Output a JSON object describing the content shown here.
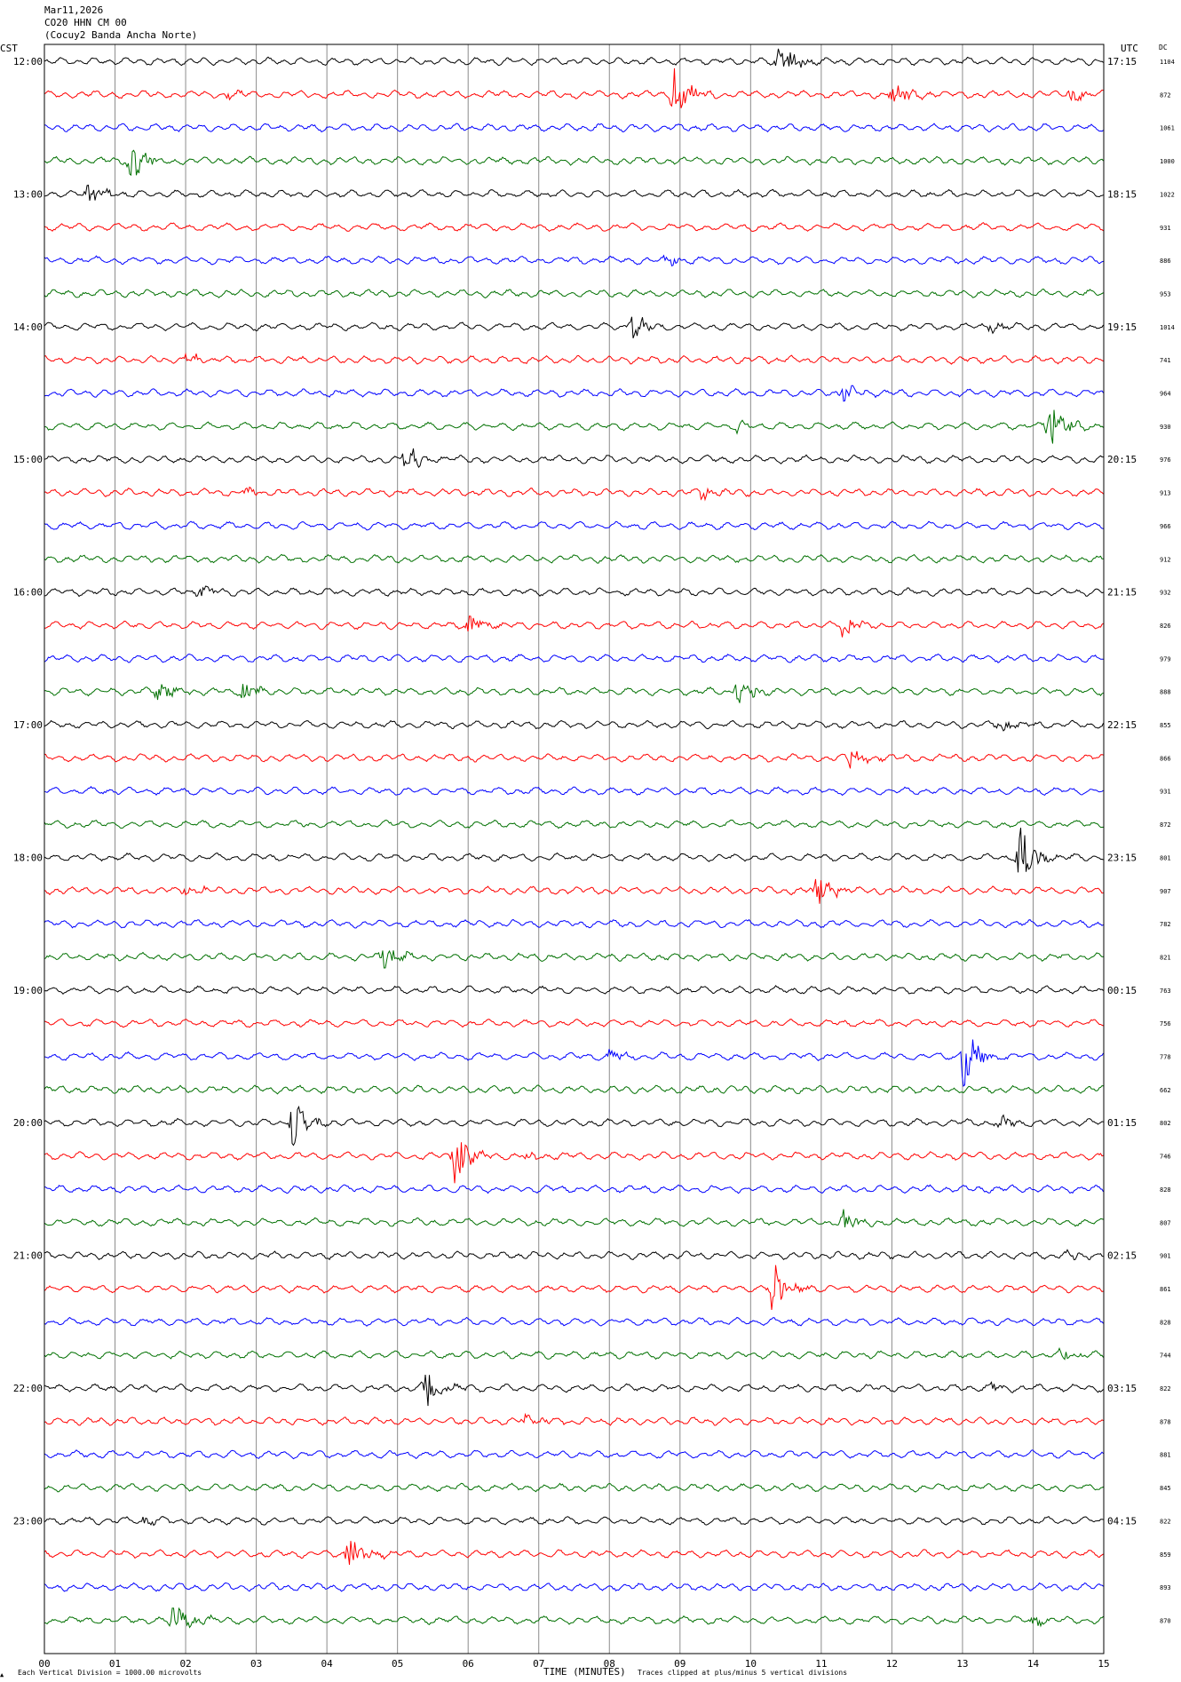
{
  "header": {
    "date": "Mar11,2026",
    "station": "CO20 HHN CM 00",
    "site": "(Cocuy2 Banda Ancha Norte)",
    "left_zone": "CST",
    "right_zone": "UTC",
    "dc_label": "DC"
  },
  "footer": {
    "division_note": "Each Vertical Division = 1000.00 microvolts",
    "x_axis_title": "TIME (MINUTES)",
    "clip_note": "Traces clipped at plus/minus 5 vertical divisions"
  },
  "colors": {
    "trace_cycle": [
      "#000000",
      "#ff0000",
      "#0000ff",
      "#007000"
    ],
    "grid": "#8c8c8c",
    "frame": "#000000",
    "text": "#000000"
  },
  "chart_data": {
    "type": "line",
    "title": "CO20 HHN CM 00 (Cocuy2 Banda Ancha Norte)",
    "xlabel": "TIME (MINUTES)",
    "xlim": [
      0,
      15
    ],
    "x_ticks": [
      "00",
      "01",
      "02",
      "03",
      "04",
      "05",
      "06",
      "07",
      "08",
      "09",
      "10",
      "11",
      "12",
      "13",
      "14",
      "15"
    ],
    "grid": true,
    "row_minutes": 15,
    "left_time_labels": [
      "12:00",
      "13:00",
      "14:00",
      "15:00",
      "16:00",
      "17:00",
      "18:00",
      "19:00",
      "20:00",
      "21:00",
      "22:00",
      "23:00"
    ],
    "right_time_labels": [
      "17:15",
      "18:15",
      "19:15",
      "20:15",
      "21:15",
      "22:15",
      "23:15",
      "00:15",
      "01:15",
      "02:15",
      "03:15",
      "04:15"
    ],
    "dc_offsets": [
      1104,
      872,
      1061,
      1000,
      1022,
      931,
      886,
      953,
      1014,
      741,
      964,
      930,
      976,
      913,
      966,
      912,
      932,
      826,
      979,
      888,
      855,
      866,
      931,
      872,
      801,
      907,
      782,
      821,
      763,
      756,
      778,
      662,
      802,
      746,
      828,
      807,
      901,
      861,
      828,
      744,
      822,
      878,
      881,
      845,
      822,
      859,
      893,
      870
    ],
    "events": [
      {
        "row": 0,
        "minute": 10.4,
        "amp": 3.5
      },
      {
        "row": 1,
        "minute": 8.9,
        "amp": 5.0
      },
      {
        "row": 1,
        "minute": 12.0,
        "amp": 2.4
      },
      {
        "row": 1,
        "minute": 14.5,
        "amp": 1.2
      },
      {
        "row": 1,
        "minute": 2.6,
        "amp": 0.8
      },
      {
        "row": 3,
        "minute": 1.2,
        "amp": 3.5
      },
      {
        "row": 4,
        "minute": 0.6,
        "amp": 2.0
      },
      {
        "row": 6,
        "minute": 8.8,
        "amp": 1.0
      },
      {
        "row": 8,
        "minute": 8.3,
        "amp": 2.6
      },
      {
        "row": 8,
        "minute": 13.4,
        "amp": 1.0
      },
      {
        "row": 9,
        "minute": 2.0,
        "amp": 1.0
      },
      {
        "row": 10,
        "minute": 11.3,
        "amp": 1.3
      },
      {
        "row": 11,
        "minute": 14.2,
        "amp": 5.0
      },
      {
        "row": 11,
        "minute": 9.8,
        "amp": 1.0
      },
      {
        "row": 12,
        "minute": 5.1,
        "amp": 3.0
      },
      {
        "row": 13,
        "minute": 9.3,
        "amp": 1.2
      },
      {
        "row": 13,
        "minute": 2.8,
        "amp": 0.9
      },
      {
        "row": 16,
        "minute": 2.2,
        "amp": 1.2
      },
      {
        "row": 17,
        "minute": 6.0,
        "amp": 1.6
      },
      {
        "row": 17,
        "minute": 11.3,
        "amp": 2.0
      },
      {
        "row": 19,
        "minute": 1.6,
        "amp": 2.0
      },
      {
        "row": 19,
        "minute": 9.8,
        "amp": 3.0
      },
      {
        "row": 19,
        "minute": 2.8,
        "amp": 1.3
      },
      {
        "row": 20,
        "minute": 13.5,
        "amp": 1.5
      },
      {
        "row": 21,
        "minute": 11.4,
        "amp": 1.6
      },
      {
        "row": 24,
        "minute": 13.8,
        "amp": 5.0
      },
      {
        "row": 25,
        "minute": 10.9,
        "amp": 3.6
      },
      {
        "row": 25,
        "minute": 2.0,
        "amp": 1.0
      },
      {
        "row": 27,
        "minute": 4.8,
        "amp": 2.2
      },
      {
        "row": 30,
        "minute": 13.0,
        "amp": 5.0
      },
      {
        "row": 30,
        "minute": 8.0,
        "amp": 1.2
      },
      {
        "row": 32,
        "minute": 3.5,
        "amp": 4.0
      },
      {
        "row": 32,
        "minute": 13.5,
        "amp": 1.2
      },
      {
        "row": 33,
        "minute": 5.8,
        "amp": 4.0
      },
      {
        "row": 33,
        "minute": 6.8,
        "amp": 1.0
      },
      {
        "row": 35,
        "minute": 11.3,
        "amp": 2.0
      },
      {
        "row": 36,
        "minute": 14.5,
        "amp": 0.8
      },
      {
        "row": 37,
        "minute": 10.3,
        "amp": 5.0
      },
      {
        "row": 39,
        "minute": 14.4,
        "amp": 1.2
      },
      {
        "row": 40,
        "minute": 5.4,
        "amp": 3.6
      },
      {
        "row": 40,
        "minute": 13.4,
        "amp": 1.0
      },
      {
        "row": 41,
        "minute": 6.8,
        "amp": 1.3
      },
      {
        "row": 44,
        "minute": 1.4,
        "amp": 0.8
      },
      {
        "row": 45,
        "minute": 4.3,
        "amp": 3.2
      },
      {
        "row": 47,
        "minute": 1.8,
        "amp": 4.0
      },
      {
        "row": 47,
        "minute": 14.0,
        "amp": 0.8
      }
    ],
    "background_amplitude_divisions": 0.45,
    "clip_divisions": 5
  }
}
